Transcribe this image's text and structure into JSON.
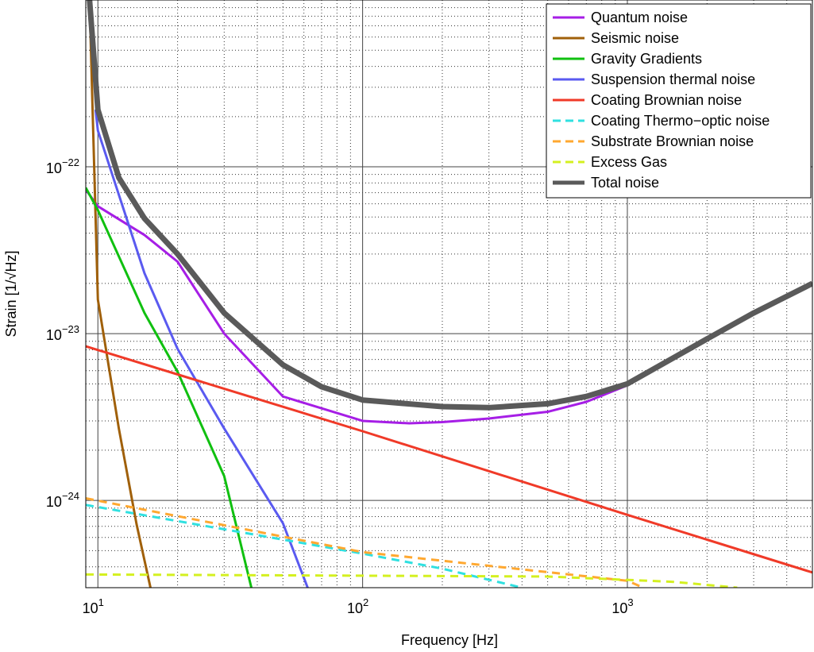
{
  "chart_data": {
    "type": "line",
    "xlabel": "Frequency [Hz]",
    "ylabel": "Strain [1/√Hz]",
    "xscale": "log",
    "yscale": "log",
    "xlim": [
      9,
      5000
    ],
    "ylim": [
      3e-25,
      1e-21
    ],
    "xticks": [
      {
        "value": 10,
        "label": "10^1"
      },
      {
        "value": 100,
        "label": "10^2"
      },
      {
        "value": 1000,
        "label": "10^3"
      }
    ],
    "yticks": [
      {
        "value": 1e-24,
        "label": "10^−24"
      },
      {
        "value": 1e-23,
        "label": "10^−23"
      },
      {
        "value": 1e-22,
        "label": "10^−22"
      }
    ],
    "grid": true,
    "minor_grid": true,
    "legend": "upper right",
    "series": [
      {
        "name": "Quantum noise",
        "color": "#a61ee6",
        "linestyle": "solid",
        "linewidth": 3,
        "x": [
          9,
          10,
          15,
          20,
          30,
          50,
          100,
          150,
          200,
          300,
          500,
          700,
          1000,
          2000,
          5000
        ],
        "values": [
          7.3e-23,
          5.8e-23,
          3.9e-23,
          2.7e-23,
          1e-23,
          4.2e-24,
          3e-24,
          2.9e-24,
          2.95e-24,
          3.1e-24,
          3.4e-24,
          3.9e-24,
          4.9e-24,
          9.5e-24,
          2e-23
        ]
      },
      {
        "name": "Seismic noise",
        "color": "#a0600a",
        "linestyle": "solid",
        "linewidth": 3,
        "x": [
          9.3,
          10,
          12,
          14,
          15.8
        ],
        "values": [
          1e-21,
          1.6e-23,
          2.7e-24,
          7.2e-25,
          3e-25
        ]
      },
      {
        "name": "Gravity Gradients",
        "color": "#10c010",
        "linestyle": "solid",
        "linewidth": 3,
        "x": [
          9,
          10,
          15,
          20,
          30,
          38
        ],
        "values": [
          7.5e-23,
          5.5e-23,
          1.33e-23,
          5.9e-24,
          1.4e-24,
          3e-25
        ]
      },
      {
        "name": "Suspension thermal noise",
        "color": "#5a5af0",
        "linestyle": "solid",
        "linewidth": 3,
        "x": [
          9.8,
          10,
          15,
          20,
          30,
          50,
          62
        ],
        "values": [
          2.2e-22,
          1.65e-22,
          2.3e-23,
          8.1e-24,
          2.7e-24,
          7.3e-25,
          3e-25
        ]
      },
      {
        "name": "Coating Brownian noise",
        "color": "#f03a28",
        "linestyle": "solid",
        "linewidth": 3,
        "x": [
          9,
          100,
          1000,
          5000
        ],
        "values": [
          8.4e-24,
          2.6e-24,
          8.2e-25,
          3.7e-25
        ]
      },
      {
        "name": "Coating Thermo−optic noise",
        "color": "#30e0e0",
        "linestyle": "dashed",
        "linewidth": 3,
        "x": [
          9,
          100,
          200,
          400
        ],
        "values": [
          9.4e-25,
          4.8e-25,
          3.9e-25,
          3e-25
        ]
      },
      {
        "name": "Substrate Brownian noise",
        "color": "#ffa830",
        "linestyle": "dashed",
        "linewidth": 3,
        "x": [
          9,
          100,
          1000,
          1150
        ],
        "values": [
          1.03e-24,
          4.9e-25,
          3.3e-25,
          3e-25
        ]
      },
      {
        "name": "Excess Gas",
        "color": "#d4f020",
        "linestyle": "dashed",
        "linewidth": 3,
        "x": [
          9,
          500,
          1500,
          2600
        ],
        "values": [
          3.6e-25,
          3.5e-25,
          3.25e-25,
          3e-25
        ]
      },
      {
        "name": "Total noise",
        "color": "#5a5a5a",
        "linestyle": "solid",
        "linewidth": 7,
        "x": [
          9.3,
          10,
          12,
          15,
          20,
          30,
          50,
          70,
          100,
          200,
          300,
          500,
          700,
          1000,
          2000,
          3000,
          5000
        ],
        "values": [
          1e-21,
          2.2e-22,
          8.6e-23,
          4.9e-23,
          3e-23,
          1.33e-23,
          6.5e-24,
          4.8e-24,
          4e-24,
          3.65e-24,
          3.6e-24,
          3.8e-24,
          4.2e-24,
          5e-24,
          9.3e-24,
          1.33e-23,
          2e-23
        ]
      }
    ]
  }
}
